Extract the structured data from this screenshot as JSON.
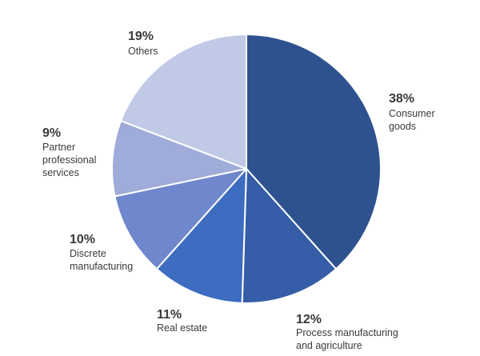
{
  "chart_data": {
    "type": "pie",
    "title": "",
    "slices": [
      {
        "pct": "38%",
        "value": 38,
        "label": [
          "Consumer",
          "goods"
        ],
        "color": "#2e528f"
      },
      {
        "pct": "12%",
        "value": 12,
        "label": [
          "Process manufacturing",
          "and agriculture"
        ],
        "color": "#365ea8"
      },
      {
        "pct": "11%",
        "value": 11,
        "label": [
          "Real estate"
        ],
        "color": "#3d6cc0"
      },
      {
        "pct": "10%",
        "value": 10,
        "label": [
          "Discrete",
          "manufacturing"
        ],
        "color": "#6f87cc"
      },
      {
        "pct": "9%",
        "value": 9,
        "label": [
          "Partner",
          "professional",
          "services"
        ],
        "color": "#9fabd8"
      },
      {
        "pct": "19%",
        "value": 19,
        "label": [
          "Others"
        ],
        "color": "#c0c9e6"
      }
    ],
    "start_angle_deg": 0,
    "direction": "clockwise"
  }
}
